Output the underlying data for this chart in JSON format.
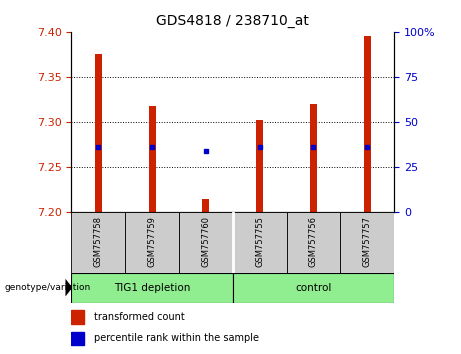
{
  "title": "GDS4818 / 238710_at",
  "samples": [
    "GSM757758",
    "GSM757759",
    "GSM757760",
    "GSM757755",
    "GSM757756",
    "GSM757757"
  ],
  "bar_tops": [
    7.375,
    7.318,
    7.215,
    7.302,
    7.32,
    7.395
  ],
  "bar_bottom": 7.2,
  "percentile_values": [
    7.272,
    7.272,
    7.268,
    7.272,
    7.272,
    7.272
  ],
  "ylim": [
    7.2,
    7.4
  ],
  "yticks_left": [
    7.2,
    7.25,
    7.3,
    7.35,
    7.4
  ],
  "yticks_right": [
    0,
    25,
    50,
    75,
    100
  ],
  "bar_color": "#cc2200",
  "dot_color": "#0000cc",
  "label_color_left": "#cc2200",
  "label_color_right": "#0000cc",
  "bg_xticklabel": "#cccccc",
  "bg_group": "#90ee90",
  "legend_red_label": "transformed count",
  "legend_blue_label": "percentile rank within the sample",
  "genotype_label": "genotype/variation",
  "title_fontsize": 10
}
